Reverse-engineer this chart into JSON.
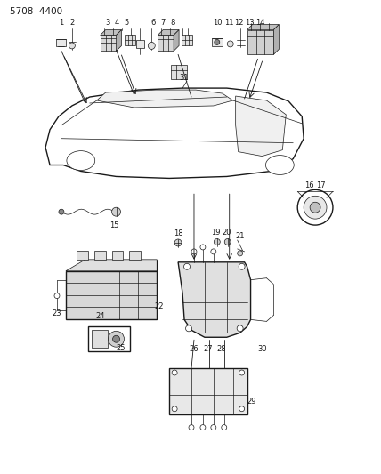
{
  "title": "5708  4400",
  "bg_color": "#ffffff",
  "ink_color": "#1a1a1a",
  "fig_width": 4.28,
  "fig_height": 5.33,
  "dpi": 100,
  "lw_main": 0.9,
  "lw_thin": 0.5,
  "lw_lead": 0.6
}
